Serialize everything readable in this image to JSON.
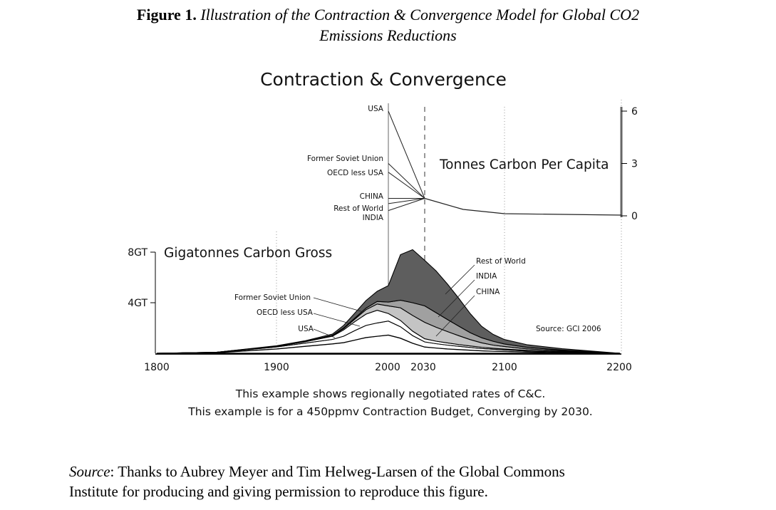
{
  "caption": {
    "label": "Figure 1.",
    "text_line1": "Illustration of the Contraction & Convergence Model for Global CO2",
    "text_line2": "Emissions Reductions"
  },
  "source": {
    "label": "Source",
    "text_line1": ": Thanks to Aubrey Meyer and Tim Helweg-Larsen of the Global Commons",
    "text_line2": "Institute for producing and giving permission to reproduce this figure."
  },
  "chart_data": {
    "type": "area",
    "title": "Contraction & Convergence",
    "source_note": "Source: GCI 2006",
    "notes": [
      "This example shows regionally negotiated rates of C&C.",
      "This example is for a 450ppmv Contraction Budget, Converging by 2030."
    ],
    "x_ticks": [
      "1800",
      "1900",
      "2000",
      "2030",
      "2100",
      "2200"
    ],
    "xlim": [
      1800,
      2200
    ],
    "colors": {
      "Rest of World": "#5e5e5e",
      "INDIA": "#a0a0a0",
      "CHINA": "#c4c4c4",
      "line": "#000000"
    },
    "per_capita": {
      "label": "Tonnes Carbon Per Capita",
      "ylim": [
        0,
        6
      ],
      "y_ticks": [
        "6",
        "3",
        "0"
      ],
      "x": [
        2000,
        2030,
        2100,
        2200
      ],
      "convergence_path": [
        1.0,
        1.0,
        0.1,
        0.0
      ],
      "series": [
        {
          "name": "USA",
          "start": 6.0
        },
        {
          "name": "Former Soviet Union",
          "start": 3.0
        },
        {
          "name": "OECD less USA",
          "start": 2.5
        },
        {
          "name": "CHINA",
          "start": 1.0
        },
        {
          "name": "Rest of World",
          "start": 0.7
        },
        {
          "name": "INDIA",
          "start": 0.3
        }
      ]
    },
    "gross": {
      "label": "Gigatonnes Carbon Gross",
      "y_ticks": [
        "8GT",
        "4GT"
      ],
      "ylim": [
        0,
        8
      ],
      "x": [
        1800,
        1850,
        1900,
        1925,
        1950,
        1960,
        1970,
        1980,
        1990,
        2000,
        2010,
        2020,
        2030,
        2040,
        2050,
        2060,
        2070,
        2080,
        2090,
        2100,
        2120,
        2150,
        2200
      ],
      "series": [
        {
          "name": "USA",
          "values": [
            0,
            0.05,
            0.35,
            0.55,
            0.75,
            0.85,
            1.05,
            1.25,
            1.35,
            1.45,
            1.2,
            0.8,
            0.5,
            0.42,
            0.35,
            0.3,
            0.25,
            0.2,
            0.17,
            0.15,
            0.1,
            0.06,
            0.0
          ]
        },
        {
          "name": "OECD less USA",
          "values": [
            0,
            0.02,
            0.15,
            0.25,
            0.35,
            0.5,
            0.75,
            0.95,
            1.05,
            1.1,
            0.9,
            0.6,
            0.4,
            0.34,
            0.3,
            0.25,
            0.21,
            0.18,
            0.15,
            0.12,
            0.08,
            0.05,
            0.0
          ]
        },
        {
          "name": "Former Soviet Union",
          "values": [
            0,
            0.01,
            0.05,
            0.1,
            0.25,
            0.5,
            0.7,
            0.9,
            1.0,
            0.6,
            0.5,
            0.35,
            0.25,
            0.2,
            0.17,
            0.14,
            0.12,
            0.1,
            0.08,
            0.07,
            0.05,
            0.03,
            0.0
          ]
        },
        {
          "name": "CHINA",
          "values": [
            0,
            0,
            0.01,
            0.02,
            0.05,
            0.1,
            0.2,
            0.35,
            0.5,
            0.6,
            1.0,
            1.25,
            1.3,
            1.1,
            0.9,
            0.7,
            0.5,
            0.35,
            0.25,
            0.2,
            0.12,
            0.06,
            0.0
          ]
        },
        {
          "name": "INDIA",
          "values": [
            0,
            0,
            0.01,
            0.01,
            0.02,
            0.05,
            0.08,
            0.12,
            0.2,
            0.3,
            0.6,
            1.0,
            1.3,
            1.15,
            0.95,
            0.75,
            0.55,
            0.4,
            0.3,
            0.2,
            0.12,
            0.06,
            0.0
          ]
        },
        {
          "name": "Rest of World",
          "values": [
            0,
            0,
            0.03,
            0.05,
            0.1,
            0.2,
            0.4,
            0.6,
            0.8,
            1.3,
            3.6,
            4.2,
            3.6,
            3.3,
            2.8,
            2.2,
            1.5,
            0.9,
            0.55,
            0.35,
            0.2,
            0.1,
            0.0
          ]
        }
      ]
    }
  }
}
